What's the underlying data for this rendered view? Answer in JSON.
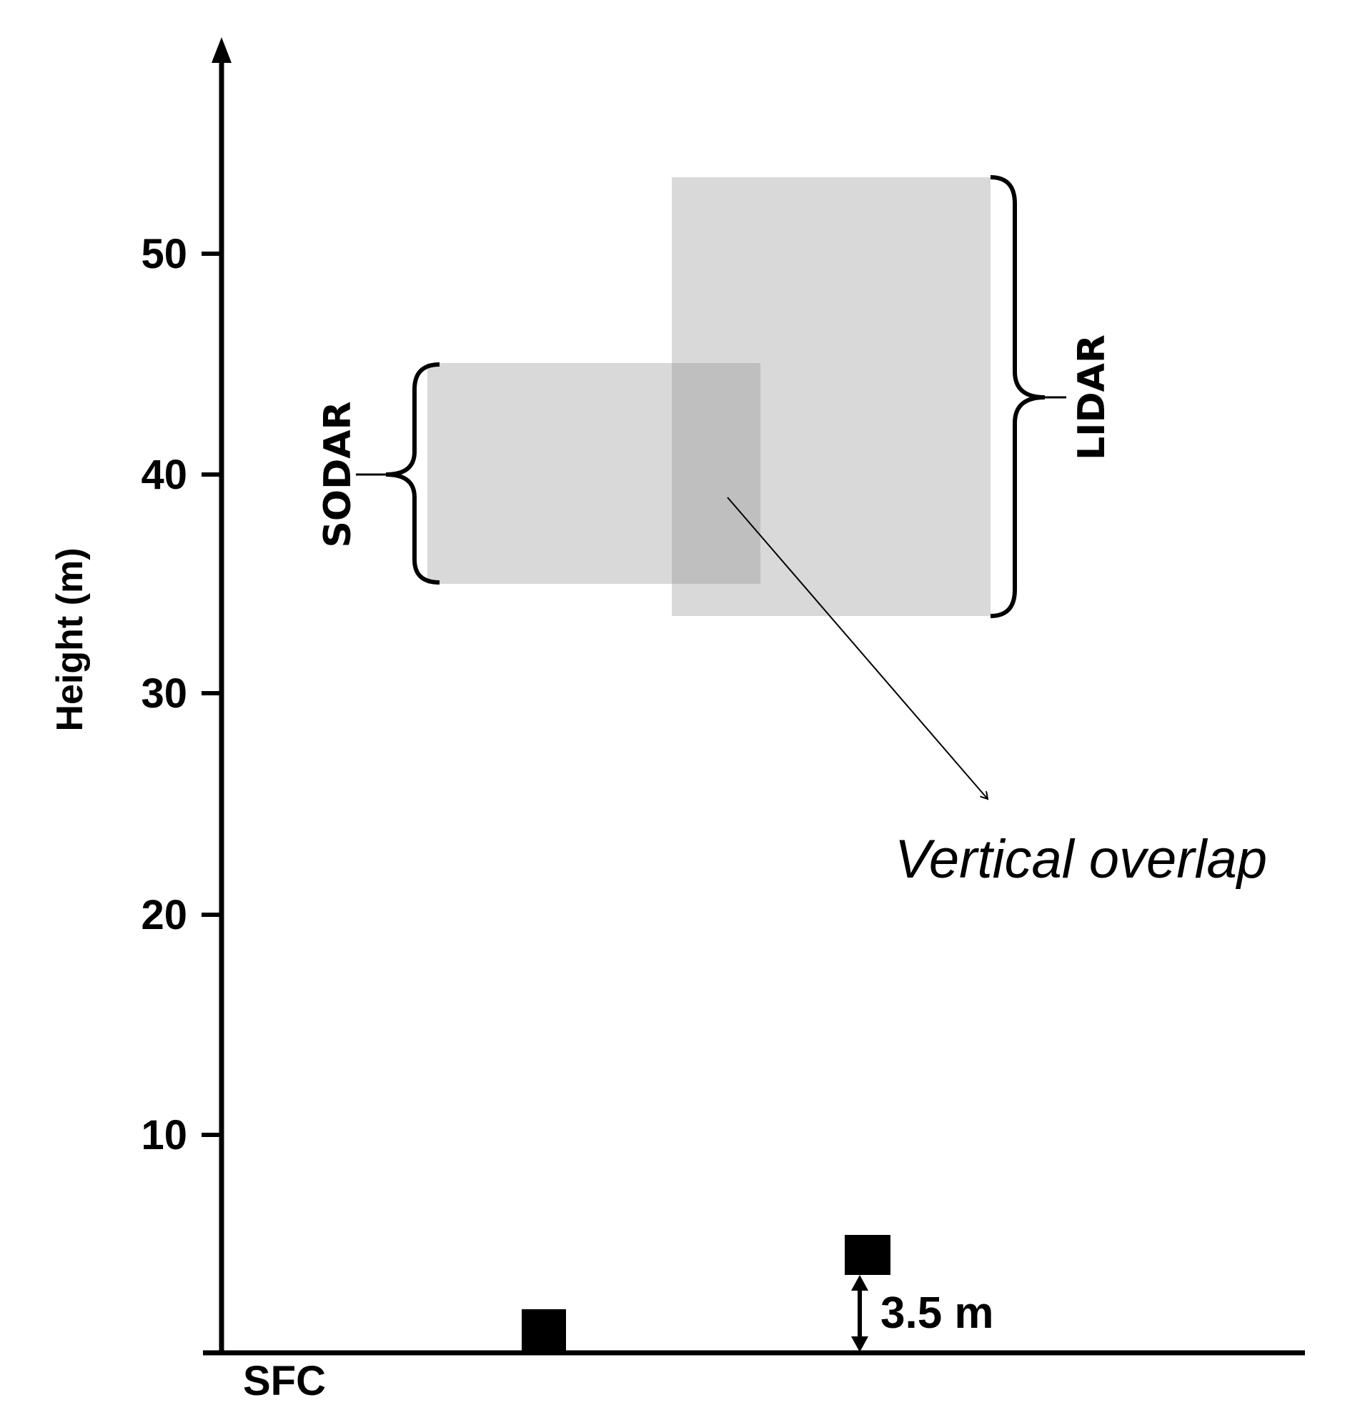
{
  "axis": {
    "title": "Height (m)",
    "ticks": [
      "10",
      "20",
      "30",
      "40",
      "50"
    ],
    "origin_label": "SFC"
  },
  "instruments": {
    "sodar": {
      "label": "SODAR",
      "range_m": [
        35,
        45
      ]
    },
    "lidar": {
      "label": "LIDAR",
      "range_m": [
        33.5,
        53.5
      ]
    }
  },
  "annotations": {
    "overlap_label": "Vertical overlap",
    "offset_label": "3.5 m"
  },
  "colors": {
    "axis": "#000000",
    "range_box": "#d9d9d9",
    "overlap_box": "#bfbfbf"
  }
}
